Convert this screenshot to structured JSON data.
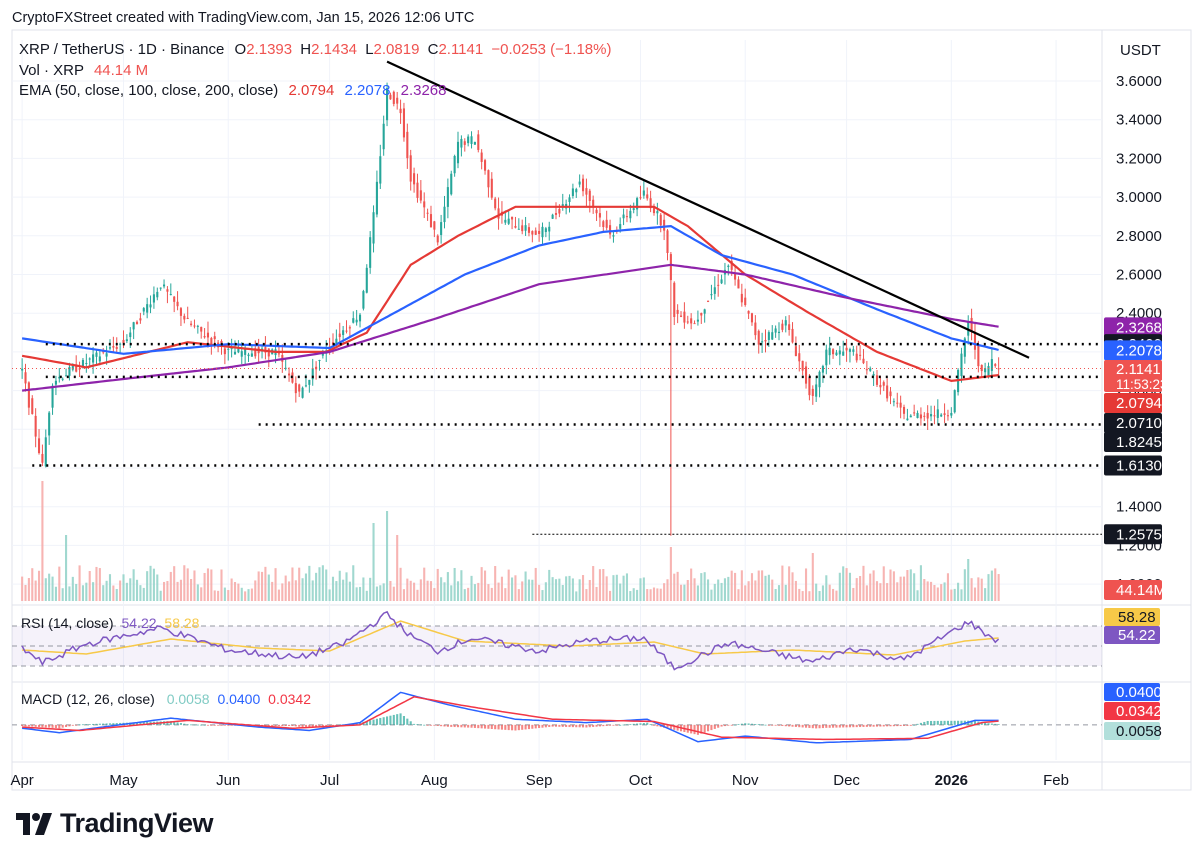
{
  "header": {
    "credit": "CryptoFXStreet created with TradingView.com, Jan 15, 2026 12:06 UTC",
    "symbol": "XRP / TetherUS · 1D · Binance",
    "o_label": "O",
    "o_value": "2.1393",
    "h_label": "H",
    "h_value": "2.1434",
    "l_label": "L",
    "l_value": "2.0819",
    "c_label": "C",
    "c_value": "2.1141",
    "change": "−0.0253 (−1.18%)",
    "vol_label": "Vol · XRP",
    "vol_value": "44.14 M",
    "ema_label": "EMA (50, close, 100, close, 200, close)",
    "ema50": "2.0794",
    "ema100": "2.2078",
    "ema200": "2.3268"
  },
  "currency": "USDT",
  "colors": {
    "up": "#26a69a",
    "down": "#ef5350",
    "ema50": "#e53935",
    "ema100": "#2962ff",
    "ema200": "#8e24aa",
    "trendline": "#000000",
    "rsi": "#7e57c2",
    "rsi_ma": "#f7c948",
    "macd": "#2962ff",
    "signal": "#f23645",
    "grid": "#f0f3fa"
  },
  "chart_data": [
    {
      "type": "candlestick",
      "title": "XRP / TetherUS · 1D · Binance",
      "ylim": [
        1.0,
        3.75
      ],
      "y_ticks": [
        "3.6000",
        "3.4000",
        "3.2000",
        "3.0000",
        "2.8000",
        "2.6000",
        "2.4000",
        "2.2000",
        "2.0000",
        "1.8000",
        "1.6000",
        "1.4000",
        "1.2000",
        "1.0000"
      ],
      "x_ticks": [
        "Apr",
        "May",
        "Jun",
        "Jul",
        "Aug",
        "Sep",
        "Oct",
        "Nov",
        "Dec",
        "2026",
        "Feb"
      ],
      "keypoints": [
        {
          "date": "2025-04-01",
          "value": 2.1
        },
        {
          "date": "2025-04-07",
          "value": 1.61
        },
        {
          "date": "2025-04-10",
          "value": 2.05
        },
        {
          "date": "2025-04-15",
          "value": 2.1
        },
        {
          "date": "2025-05-01",
          "value": 2.25
        },
        {
          "date": "2025-05-12",
          "value": 2.55
        },
        {
          "date": "2025-05-20",
          "value": 2.35
        },
        {
          "date": "2025-06-01",
          "value": 2.2
        },
        {
          "date": "2025-06-15",
          "value": 2.2
        },
        {
          "date": "2025-06-22",
          "value": 1.98
        },
        {
          "date": "2025-06-30",
          "value": 2.22
        },
        {
          "date": "2025-07-10",
          "value": 2.4
        },
        {
          "date": "2025-07-14",
          "value": 2.9
        },
        {
          "date": "2025-07-18",
          "value": 3.55
        },
        {
          "date": "2025-07-22",
          "value": 3.45
        },
        {
          "date": "2025-07-25",
          "value": 3.1
        },
        {
          "date": "2025-08-02",
          "value": 2.78
        },
        {
          "date": "2025-08-08",
          "value": 3.28
        },
        {
          "date": "2025-08-13",
          "value": 3.3
        },
        {
          "date": "2025-08-20",
          "value": 2.9
        },
        {
          "date": "2025-09-01",
          "value": 2.8
        },
        {
          "date": "2025-09-13",
          "value": 3.08
        },
        {
          "date": "2025-09-22",
          "value": 2.8
        },
        {
          "date": "2025-10-02",
          "value": 3.02
        },
        {
          "date": "2025-10-08",
          "value": 2.85
        },
        {
          "date": "2025-10-11",
          "value": 2.4
        },
        {
          "date": "2025-10-17",
          "value": 2.35
        },
        {
          "date": "2025-10-27",
          "value": 2.65
        },
        {
          "date": "2025-11-05",
          "value": 2.25
        },
        {
          "date": "2025-11-13",
          "value": 2.35
        },
        {
          "date": "2025-11-21",
          "value": 1.95
        },
        {
          "date": "2025-11-25",
          "value": 2.2
        },
        {
          "date": "2025-12-03",
          "value": 2.2
        },
        {
          "date": "2025-12-10",
          "value": 2.05
        },
        {
          "date": "2025-12-18",
          "value": 1.87
        },
        {
          "date": "2025-12-28",
          "value": 1.88
        },
        {
          "date": "2026-01-01",
          "value": 1.9
        },
        {
          "date": "2026-01-06",
          "value": 2.36
        },
        {
          "date": "2026-01-10",
          "value": 2.08
        },
        {
          "date": "2026-01-13",
          "value": 2.15
        },
        {
          "date": "2026-01-15",
          "value": 2.11
        }
      ],
      "wick_spikes": [
        {
          "date": "2025-04-07",
          "low": 1.61
        },
        {
          "date": "2025-10-10",
          "low": 1.25
        }
      ],
      "series": [
        {
          "name": "EMA 50",
          "value_label": "2.0794",
          "points": [
            {
              "date": "2025-04-01",
              "value": 2.18
            },
            {
              "date": "2025-04-20",
              "value": 2.12
            },
            {
              "date": "2025-05-20",
              "value": 2.25
            },
            {
              "date": "2025-06-15",
              "value": 2.2
            },
            {
              "date": "2025-06-30",
              "value": 2.2
            },
            {
              "date": "2025-07-12",
              "value": 2.3
            },
            {
              "date": "2025-07-25",
              "value": 2.65
            },
            {
              "date": "2025-08-08",
              "value": 2.8
            },
            {
              "date": "2025-08-25",
              "value": 2.95
            },
            {
              "date": "2025-09-15",
              "value": 2.95
            },
            {
              "date": "2025-10-05",
              "value": 2.95
            },
            {
              "date": "2025-10-15",
              "value": 2.85
            },
            {
              "date": "2025-11-01",
              "value": 2.6
            },
            {
              "date": "2025-11-20",
              "value": 2.4
            },
            {
              "date": "2025-12-10",
              "value": 2.2
            },
            {
              "date": "2026-01-01",
              "value": 2.05
            },
            {
              "date": "2026-01-15",
              "value": 2.08
            }
          ]
        },
        {
          "name": "EMA 100",
          "value_label": "2.2078",
          "points": [
            {
              "date": "2025-04-01",
              "value": 2.27
            },
            {
              "date": "2025-05-01",
              "value": 2.19
            },
            {
              "date": "2025-06-01",
              "value": 2.24
            },
            {
              "date": "2025-07-01",
              "value": 2.22
            },
            {
              "date": "2025-07-20",
              "value": 2.4
            },
            {
              "date": "2025-08-10",
              "value": 2.6
            },
            {
              "date": "2025-09-01",
              "value": 2.75
            },
            {
              "date": "2025-09-20",
              "value": 2.82
            },
            {
              "date": "2025-10-10",
              "value": 2.85
            },
            {
              "date": "2025-10-25",
              "value": 2.7
            },
            {
              "date": "2025-11-15",
              "value": 2.6
            },
            {
              "date": "2025-12-10",
              "value": 2.42
            },
            {
              "date": "2026-01-01",
              "value": 2.27
            },
            {
              "date": "2026-01-15",
              "value": 2.21
            }
          ]
        },
        {
          "name": "EMA 200",
          "value_label": "2.3268",
          "points": [
            {
              "date": "2025-04-01",
              "value": 2.0
            },
            {
              "date": "2025-05-01",
              "value": 2.06
            },
            {
              "date": "2025-06-01",
              "value": 2.12
            },
            {
              "date": "2025-07-01",
              "value": 2.2
            },
            {
              "date": "2025-08-01",
              "value": 2.37
            },
            {
              "date": "2025-09-01",
              "value": 2.55
            },
            {
              "date": "2025-10-10",
              "value": 2.65
            },
            {
              "date": "2025-11-01",
              "value": 2.6
            },
            {
              "date": "2025-12-01",
              "value": 2.48
            },
            {
              "date": "2026-01-01",
              "value": 2.37
            },
            {
              "date": "2026-01-15",
              "value": 2.33
            }
          ]
        }
      ],
      "trendline": [
        {
          "date": "2025-07-18",
          "value": 3.7
        },
        {
          "date": "2026-01-24",
          "value": 2.17
        }
      ],
      "levels": [
        {
          "value": 2.24,
          "label": "2.2400",
          "from": "2025-04-08",
          "style": "dotted"
        },
        {
          "value": 2.071,
          "label": "2.0710",
          "from": "2025-04-08",
          "style": "dotted"
        },
        {
          "value": 1.8245,
          "label": "1.8245",
          "from": "2025-06-10",
          "style": "dotted"
        },
        {
          "value": 1.613,
          "label": "1.6130",
          "from": "2025-04-04",
          "style": "dotted"
        },
        {
          "value": 1.2575,
          "label": "1.2575",
          "from": "2025-08-30",
          "style": "fine"
        }
      ],
      "last_price": {
        "value": 2.1141,
        "label": "2.1141",
        "countdown": "11:53:23"
      }
    },
    {
      "type": "bar",
      "title": "Vol · XRP",
      "last_label": "44.14M",
      "spikes": [
        {
          "date": "2025-04-07",
          "value": 1.0
        },
        {
          "date": "2025-04-14",
          "value": 0.55
        },
        {
          "date": "2025-07-14",
          "value": 0.65
        },
        {
          "date": "2025-07-18",
          "value": 0.75
        },
        {
          "date": "2025-07-21",
          "value": 0.55
        },
        {
          "date": "2025-10-10",
          "value": 0.45
        },
        {
          "date": "2025-11-21",
          "value": 0.4
        },
        {
          "date": "2026-01-06",
          "value": 0.35
        }
      ]
    },
    {
      "type": "line",
      "title": "RSI (14, close)",
      "rsi": "54.22",
      "rsi_ma": "58.28",
      "ylim": [
        20,
        85
      ],
      "bands": [
        70,
        50,
        30
      ],
      "series": [
        {
          "name": "RSI",
          "points": [
            {
              "date": "2025-04-01",
              "value": 48
            },
            {
              "date": "2025-04-07",
              "value": 33
            },
            {
              "date": "2025-04-20",
              "value": 52
            },
            {
              "date": "2025-05-12",
              "value": 68
            },
            {
              "date": "2025-06-01",
              "value": 46
            },
            {
              "date": "2025-06-22",
              "value": 38
            },
            {
              "date": "2025-07-05",
              "value": 52
            },
            {
              "date": "2025-07-18",
              "value": 82
            },
            {
              "date": "2025-07-25",
              "value": 60
            },
            {
              "date": "2025-08-02",
              "value": 45
            },
            {
              "date": "2025-08-12",
              "value": 58
            },
            {
              "date": "2025-09-01",
              "value": 45
            },
            {
              "date": "2025-09-15",
              "value": 55
            },
            {
              "date": "2025-10-02",
              "value": 58
            },
            {
              "date": "2025-10-11",
              "value": 28
            },
            {
              "date": "2025-10-27",
              "value": 53
            },
            {
              "date": "2025-11-21",
              "value": 34
            },
            {
              "date": "2025-12-03",
              "value": 48
            },
            {
              "date": "2025-12-18",
              "value": 36
            },
            {
              "date": "2026-01-06",
              "value": 74
            },
            {
              "date": "2026-01-15",
              "value": 54
            }
          ]
        },
        {
          "name": "RSI MA",
          "points": [
            {
              "date": "2025-04-01",
              "value": 46
            },
            {
              "date": "2025-04-20",
              "value": 42
            },
            {
              "date": "2025-05-15",
              "value": 57
            },
            {
              "date": "2025-06-10",
              "value": 48
            },
            {
              "date": "2025-07-01",
              "value": 45
            },
            {
              "date": "2025-07-22",
              "value": 75
            },
            {
              "date": "2025-08-10",
              "value": 55
            },
            {
              "date": "2025-09-10",
              "value": 50
            },
            {
              "date": "2025-10-05",
              "value": 54
            },
            {
              "date": "2025-10-20",
              "value": 42
            },
            {
              "date": "2025-11-15",
              "value": 46
            },
            {
              "date": "2025-12-15",
              "value": 41
            },
            {
              "date": "2026-01-05",
              "value": 55
            },
            {
              "date": "2026-01-15",
              "value": 58
            }
          ]
        }
      ]
    },
    {
      "type": "line",
      "title": "MACD (12, 26, close)",
      "histogram": "0.0058",
      "macd": "0.0400",
      "signal": "0.0342",
      "ylim": [
        -0.26,
        0.32
      ],
      "series": [
        {
          "name": "MACD",
          "points": [
            {
              "date": "2025-04-01",
              "value": -0.03
            },
            {
              "date": "2025-04-12",
              "value": -0.07
            },
            {
              "date": "2025-05-15",
              "value": 0.06
            },
            {
              "date": "2025-06-10",
              "value": -0.02
            },
            {
              "date": "2025-06-25",
              "value": -0.05
            },
            {
              "date": "2025-07-10",
              "value": 0.02
            },
            {
              "date": "2025-07-22",
              "value": 0.29
            },
            {
              "date": "2025-08-05",
              "value": 0.18
            },
            {
              "date": "2025-08-25",
              "value": 0.05
            },
            {
              "date": "2025-09-15",
              "value": 0.02
            },
            {
              "date": "2025-10-03",
              "value": 0.05
            },
            {
              "date": "2025-10-18",
              "value": -0.15
            },
            {
              "date": "2025-11-01",
              "value": -0.1
            },
            {
              "date": "2025-11-22",
              "value": -0.16
            },
            {
              "date": "2025-12-20",
              "value": -0.13
            },
            {
              "date": "2026-01-08",
              "value": 0.04
            },
            {
              "date": "2026-01-15",
              "value": 0.04
            }
          ]
        },
        {
          "name": "Signal",
          "points": [
            {
              "date": "2025-04-01",
              "value": -0.02
            },
            {
              "date": "2025-04-18",
              "value": -0.05
            },
            {
              "date": "2025-05-20",
              "value": 0.04
            },
            {
              "date": "2025-06-20",
              "value": -0.03
            },
            {
              "date": "2025-07-10",
              "value": 0.0
            },
            {
              "date": "2025-07-26",
              "value": 0.25
            },
            {
              "date": "2025-08-12",
              "value": 0.16
            },
            {
              "date": "2025-09-05",
              "value": 0.05
            },
            {
              "date": "2025-10-05",
              "value": 0.03
            },
            {
              "date": "2025-10-25",
              "value": -0.11
            },
            {
              "date": "2025-11-25",
              "value": -0.13
            },
            {
              "date": "2025-12-25",
              "value": -0.12
            },
            {
              "date": "2026-01-10",
              "value": 0.02
            },
            {
              "date": "2026-01-15",
              "value": 0.034
            }
          ]
        }
      ]
    }
  ],
  "branding": {
    "logo_text": "TradingView"
  }
}
